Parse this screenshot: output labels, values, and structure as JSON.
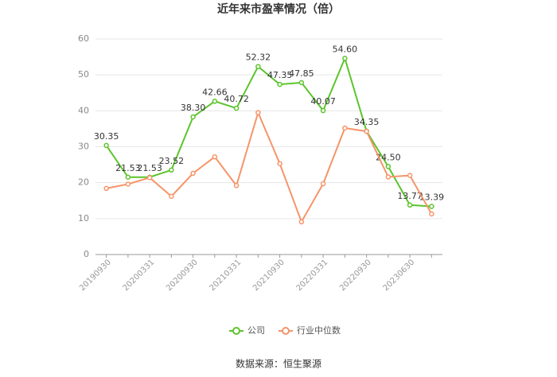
{
  "chart_data": {
    "type": "line",
    "title": "近年来市盈率情况（倍）",
    "categories": [
      "20190930",
      null,
      "20200331",
      null,
      "20200930",
      null,
      "20210331",
      null,
      "20210930",
      null,
      "20220331",
      null,
      "20220930",
      null,
      "20230630",
      null
    ],
    "series": [
      {
        "name": "公司",
        "color": "#5cc42c",
        "values": [
          30.35,
          21.53,
          21.53,
          23.52,
          38.3,
          42.66,
          40.72,
          52.32,
          47.35,
          47.85,
          40.07,
          54.6,
          34.35,
          24.5,
          13.77,
          13.39
        ],
        "value_labels": [
          "30.35",
          "21.53",
          "21.53",
          "23.52",
          "38.30",
          "42.66",
          "40.72",
          "52.32",
          "47.35",
          "47.85",
          "40.07",
          "54.60",
          "34.35",
          "24.50",
          "13.77",
          "13.39"
        ]
      },
      {
        "name": "行业中位数",
        "color": "#f5956a",
        "values": [
          18.4,
          19.6,
          21.4,
          16.2,
          22.6,
          27.2,
          19.2,
          39.5,
          25.3,
          9.1,
          19.7,
          35.2,
          34.3,
          21.6,
          22.0,
          11.3
        ]
      }
    ],
    "ylim": [
      0,
      60
    ],
    "yticks": [
      0,
      10,
      20,
      30,
      40,
      50,
      60
    ],
    "grid": true,
    "source": "数据来源：恒生聚源"
  }
}
